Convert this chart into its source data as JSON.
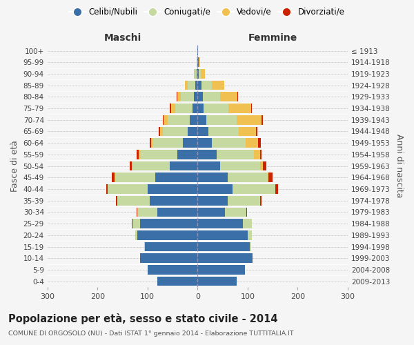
{
  "age_groups": [
    "0-4",
    "5-9",
    "10-14",
    "15-19",
    "20-24",
    "25-29",
    "30-34",
    "35-39",
    "40-44",
    "45-49",
    "50-54",
    "55-59",
    "60-64",
    "65-69",
    "70-74",
    "75-79",
    "80-84",
    "85-89",
    "90-94",
    "95-99",
    "100+"
  ],
  "birth_years": [
    "2009-2013",
    "2004-2008",
    "1999-2003",
    "1994-1998",
    "1989-1993",
    "1984-1988",
    "1979-1983",
    "1974-1978",
    "1969-1973",
    "1964-1968",
    "1959-1963",
    "1954-1958",
    "1949-1953",
    "1944-1948",
    "1939-1943",
    "1934-1938",
    "1929-1933",
    "1924-1928",
    "1919-1923",
    "1914-1918",
    "≤ 1913"
  ],
  "male_celibi": [
    80,
    100,
    115,
    105,
    120,
    115,
    80,
    95,
    100,
    85,
    55,
    40,
    30,
    20,
    15,
    10,
    8,
    5,
    2,
    1,
    1
  ],
  "male_coniugati": [
    0,
    0,
    0,
    2,
    5,
    15,
    40,
    65,
    80,
    80,
    75,
    75,
    60,
    50,
    45,
    35,
    25,
    15,
    4,
    1,
    0
  ],
  "male_vedovi": [
    0,
    0,
    0,
    0,
    0,
    0,
    0,
    0,
    0,
    1,
    1,
    2,
    3,
    5,
    8,
    8,
    8,
    5,
    2,
    0,
    0
  ],
  "male_divorziati": [
    0,
    0,
    0,
    0,
    0,
    1,
    2,
    3,
    3,
    5,
    5,
    5,
    2,
    3,
    2,
    2,
    1,
    0,
    0,
    0,
    0
  ],
  "female_celibi": [
    78,
    95,
    110,
    105,
    100,
    90,
    55,
    60,
    70,
    60,
    45,
    38,
    28,
    22,
    18,
    12,
    10,
    8,
    3,
    2,
    1
  ],
  "female_coniugati": [
    0,
    0,
    0,
    2,
    8,
    18,
    42,
    65,
    85,
    80,
    80,
    75,
    68,
    60,
    60,
    50,
    35,
    20,
    4,
    1,
    0
  ],
  "female_vedovi": [
    0,
    0,
    0,
    0,
    0,
    0,
    0,
    0,
    1,
    2,
    5,
    12,
    25,
    35,
    50,
    45,
    35,
    25,
    8,
    2,
    0
  ],
  "female_divorziati": [
    0,
    0,
    0,
    0,
    0,
    1,
    2,
    3,
    5,
    8,
    8,
    3,
    5,
    3,
    2,
    2,
    1,
    1,
    0,
    0,
    0
  ],
  "color_celibi": "#3a6fa8",
  "color_coniugati": "#c5d9a0",
  "color_vedovi": "#f0c050",
  "color_divorziati": "#cc2200",
  "title": "Popolazione per età, sesso e stato civile - 2014",
  "subtitle": "COMUNE DI ORGOSOLO (NU) - Dati ISTAT 1° gennaio 2014 - Elaborazione TUTTITALIA.IT",
  "label_maschi": "Maschi",
  "label_femmine": "Femmine",
  "ylabel_left": "Fasce di età",
  "ylabel_right": "Anni di nascita",
  "xlim": 300,
  "bg_color": "#f5f5f5",
  "grid_color": "#cccccc"
}
